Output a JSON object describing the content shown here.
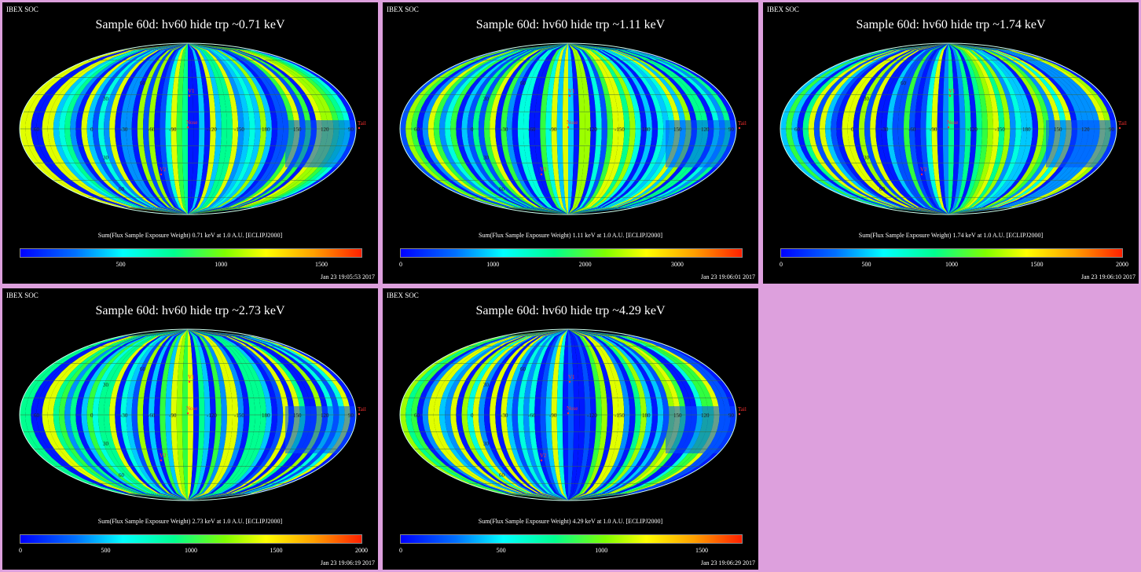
{
  "header": {
    "soc_label": "IBEX SOC"
  },
  "chart_data": [
    {
      "type": "heatmap",
      "title": "Sample 60d: hv60 hide trp ~0.71 keV",
      "caption": "Sum(Flux Sample Exposure Weight)  0.71 keV at 1.0 A.U. [ECLIPJ2000]",
      "colorbar": {
        "ticks": [
          "500",
          "1000",
          "1500"
        ],
        "range": [
          0,
          1700
        ],
        "tick_values": [
          500,
          1000,
          1500
        ]
      },
      "timestamp": "Jan 23 19:05:53 2017"
    },
    {
      "type": "heatmap",
      "title": "Sample 60d: hv60 hide trp ~1.11 keV",
      "caption": "Sum(Flux Sample Exposure Weight)  1.11 keV at 1.0 A.U. [ECLIPJ2000]",
      "colorbar": {
        "ticks": [
          "0",
          "1000",
          "2000",
          "3000"
        ],
        "range": [
          0,
          3700
        ],
        "tick_values": [
          0,
          1000,
          2000,
          3000
        ]
      },
      "timestamp": "Jan 23 19:06:01 2017"
    },
    {
      "type": "heatmap",
      "title": "Sample 60d: hv60 hide trp ~1.74 keV",
      "caption": "Sum(Flux Sample Exposure Weight)  1.74 keV at 1.0 A.U. [ECLIPJ2000]",
      "colorbar": {
        "ticks": [
          "0",
          "500",
          "1000",
          "1500",
          "2000"
        ],
        "range": [
          0,
          2000
        ],
        "tick_values": [
          0,
          500,
          1000,
          1500,
          2000
        ]
      },
      "timestamp": "Jan 23 19:06:10 2017"
    },
    {
      "type": "heatmap",
      "title": "Sample 60d: hv60 hide trp ~2.73 keV",
      "caption": "Sum(Flux Sample Exposure Weight)  2.73 keV at 1.0 A.U. [ECLIPJ2000]",
      "colorbar": {
        "ticks": [
          "0",
          "500",
          "1000",
          "1500",
          "2000"
        ],
        "range": [
          0,
          2000
        ],
        "tick_values": [
          0,
          500,
          1000,
          1500,
          2000
        ]
      },
      "timestamp": "Jan 23 19:06:19 2017"
    },
    {
      "type": "heatmap",
      "title": "Sample 60d: hv60 hide trp ~4.29 keV",
      "caption": "Sum(Flux Sample Exposure Weight)  4.29 keV at 1.0 A.U. [ECLIPJ2000]",
      "colorbar": {
        "ticks": [
          "0",
          "500",
          "1000",
          "1500"
        ],
        "range": [
          0,
          1700
        ],
        "tick_values": [
          0,
          500,
          1000,
          1500
        ]
      },
      "timestamp": "Jan 23 19:06:29 2017"
    }
  ],
  "map_labels": {
    "lon": [
      "60",
      "0",
      "-30",
      "-60",
      "-90",
      "-120",
      "-150",
      "180",
      "150",
      "120",
      "90"
    ],
    "lat": [
      "60",
      "30",
      "30",
      "60"
    ],
    "markers": [
      "V1",
      "V2",
      "Nose",
      "Tail"
    ]
  },
  "colors": {
    "background": "#dda0dd",
    "panel": "#000000",
    "marker": "#ff3030"
  }
}
